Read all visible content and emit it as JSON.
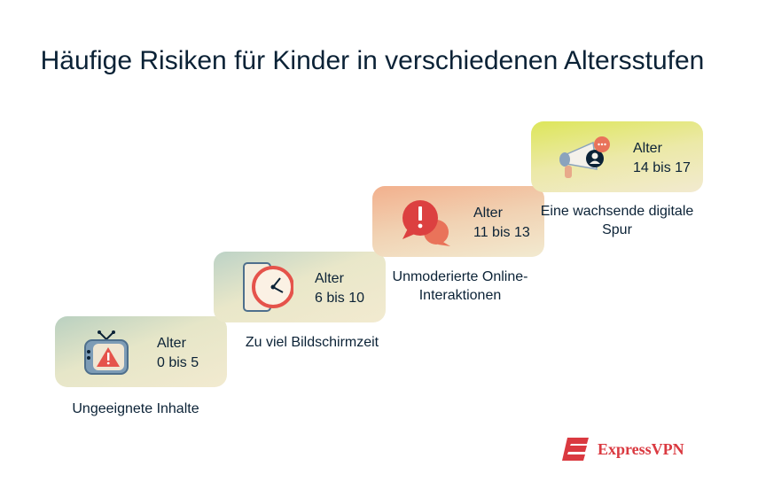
{
  "title": "Häufige Risiken für Kinder in verschiedenen Altersstufen",
  "steps": [
    {
      "age_label": "Alter",
      "age_range": "0 bis 5",
      "caption": "Ungeeignete Inhalte",
      "icon": "tv-warning-icon"
    },
    {
      "age_label": "Alter",
      "age_range": "6 bis 10",
      "caption": "Zu viel Bildschirmzeit",
      "icon": "clock-phone-icon"
    },
    {
      "age_label": "Alter",
      "age_range": "11 bis 13",
      "caption": "Unmoderierte Online-Interaktionen",
      "icon": "alert-speech-bubble-icon"
    },
    {
      "age_label": "Alter",
      "age_range": "14 bis 17",
      "caption": "Eine wachsende digitale Spur",
      "icon": "megaphone-icon"
    }
  ],
  "brand": {
    "name": "ExpressVPN",
    "color": "#da3940"
  }
}
